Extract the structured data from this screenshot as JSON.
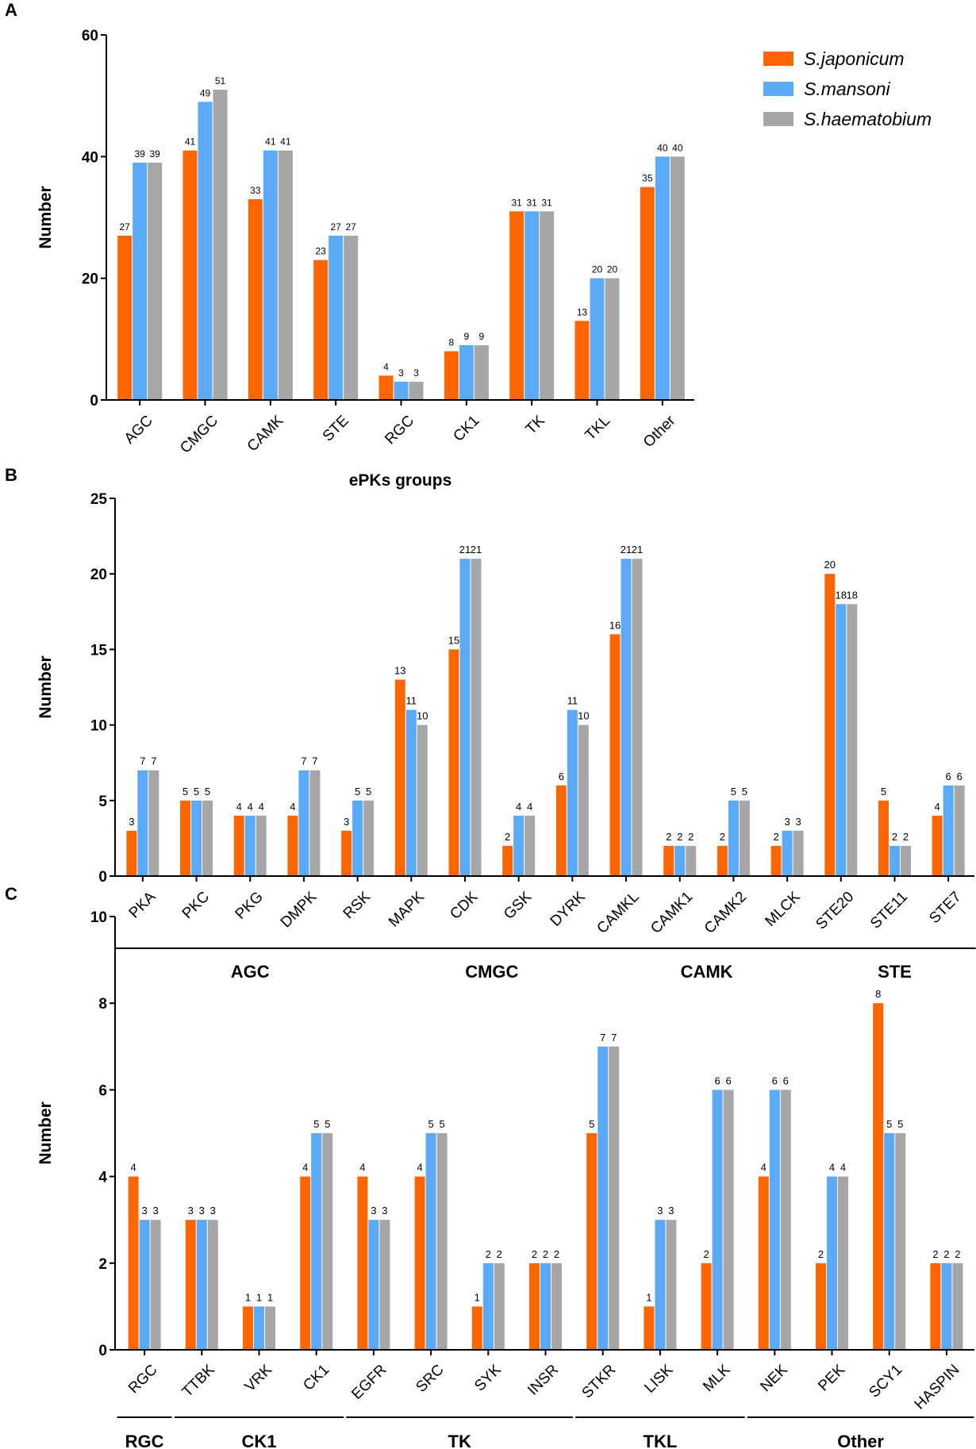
{
  "colors": {
    "s_japonicum": "#FF6600",
    "s_mansoni": "#5AAAF7",
    "s_haematobium": "#A6A6A6",
    "axis": "#000000"
  },
  "legend": [
    "S.japonicum",
    "S.mansoni",
    "S.haematobium"
  ],
  "chart_data": [
    {
      "panel": "A",
      "type": "bar",
      "title": "",
      "xlabel": "ePKs  groups",
      "ylabel": "Number",
      "ylim": [
        0,
        60
      ],
      "yticks": [
        0,
        20,
        40,
        60
      ],
      "legend_position": "top-right",
      "categories": [
        "AGC",
        "CMGC",
        "CAMK",
        "STE",
        "RGC",
        "CK1",
        "TK",
        "TKL",
        "Other"
      ],
      "series": [
        {
          "name": "S.japonicum",
          "values": [
            27,
            41,
            33,
            23,
            4,
            8,
            31,
            13,
            35
          ]
        },
        {
          "name": "S.mansoni",
          "values": [
            39,
            49,
            41,
            27,
            3,
            9,
            31,
            20,
            40
          ]
        },
        {
          "name": "S.haematobium",
          "values": [
            39,
            51,
            41,
            27,
            3,
            9,
            31,
            20,
            40
          ]
        }
      ]
    },
    {
      "panel": "B",
      "type": "bar",
      "title": "",
      "xlabel": "",
      "ylabel": "Number",
      "ylim": [
        0,
        25
      ],
      "yticks": [
        0,
        5,
        10,
        15,
        20,
        25
      ],
      "categories": [
        "PKA",
        "PKC",
        "PKG",
        "DMPK",
        "RSK",
        "MAPK",
        "CDK",
        "GSK",
        "DYRK",
        "CAMKL",
        "CAMK1",
        "CAMK2",
        "MLCK",
        "STE20",
        "STE11",
        "STE7"
      ],
      "groups": [
        {
          "label": "AGC",
          "start": 0,
          "end": 4
        },
        {
          "label": "CMGC",
          "start": 5,
          "end": 8
        },
        {
          "label": "CAMK",
          "start": 9,
          "end": 12
        },
        {
          "label": "STE",
          "start": 13,
          "end": 15
        }
      ],
      "series": [
        {
          "name": "S.japonicum",
          "values": [
            3,
            5,
            4,
            4,
            3,
            13,
            15,
            2,
            6,
            16,
            2,
            2,
            2,
            20,
            5,
            4
          ]
        },
        {
          "name": "S.mansoni",
          "values": [
            7,
            5,
            4,
            7,
            5,
            11,
            21,
            4,
            11,
            21,
            2,
            5,
            3,
            18,
            2,
            6
          ]
        },
        {
          "name": "S.haematobium",
          "values": [
            7,
            5,
            4,
            7,
            5,
            10,
            21,
            4,
            10,
            21,
            2,
            5,
            3,
            18,
            2,
            6
          ]
        }
      ]
    },
    {
      "panel": "C",
      "type": "bar",
      "title": "",
      "xlabel": "",
      "ylabel": "Number",
      "ylim": [
        0,
        10
      ],
      "yticks": [
        0,
        2,
        4,
        6,
        8,
        10
      ],
      "categories": [
        "RGC",
        "TTBK",
        "VRK",
        "CK1",
        "EGFR",
        "SRC",
        "SYK",
        "INSR",
        "STKR",
        "LISK",
        "MLK",
        "NEK",
        "PEK",
        "SCY1",
        "HASPIN"
      ],
      "groups": [
        {
          "label": "RGC",
          "start": 0,
          "end": 0
        },
        {
          "label": "CK1",
          "start": 1,
          "end": 3
        },
        {
          "label": "TK",
          "start": 4,
          "end": 7
        },
        {
          "label": "TKL",
          "start": 8,
          "end": 10
        },
        {
          "label": "Other",
          "start": 11,
          "end": 14
        }
      ],
      "series": [
        {
          "name": "S.japonicum",
          "values": [
            4,
            3,
            1,
            4,
            4,
            4,
            1,
            2,
            5,
            1,
            2,
            4,
            2,
            8,
            2
          ]
        },
        {
          "name": "S.mansoni",
          "values": [
            3,
            3,
            1,
            5,
            3,
            5,
            2,
            2,
            7,
            3,
            6,
            6,
            4,
            5,
            2
          ]
        },
        {
          "name": "S.haematobium",
          "values": [
            3,
            3,
            1,
            5,
            3,
            5,
            2,
            2,
            7,
            3,
            6,
            6,
            4,
            5,
            2
          ]
        }
      ]
    }
  ]
}
